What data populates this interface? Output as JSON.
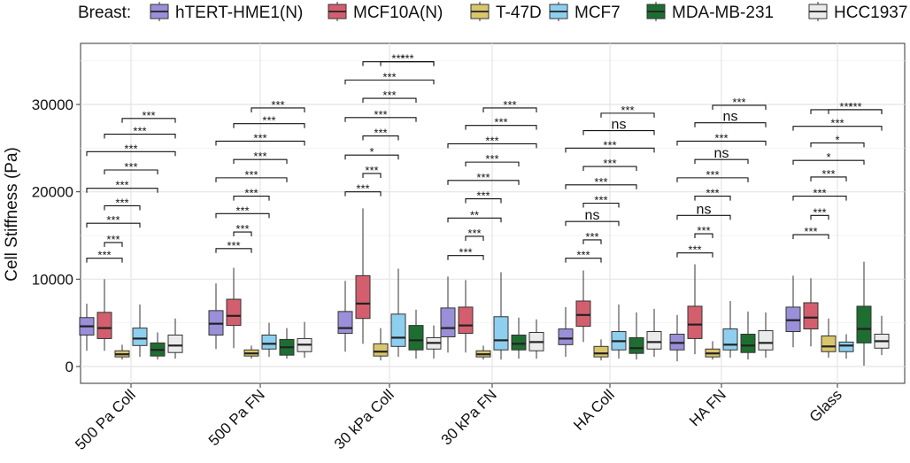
{
  "chart_data": {
    "type": "box",
    "ylabel": "Cell Stiffness (Pa)",
    "xlabel": "",
    "ylim": [
      -1500,
      37000
    ],
    "y_ticks": [
      0,
      10000,
      20000,
      30000
    ],
    "y_tick_labels": [
      "0",
      "10000",
      "20000",
      "30000"
    ],
    "grid": true,
    "legend": {
      "position": "top",
      "title": "Breast:"
    },
    "categories": [
      "500 Pa Coll",
      "500 Pa FN",
      "30 kPa Coll",
      "30 kPa FN",
      "HA Coll",
      "HA FN",
      "Glass"
    ],
    "series": [
      {
        "name": "hTERT-HME1(N)",
        "color": "#9a8fd9",
        "boxes": [
          {
            "min": 1800,
            "q1": 3600,
            "median": 4600,
            "q3": 5600,
            "max": 7200
          },
          {
            "min": 2000,
            "q1": 3600,
            "median": 4900,
            "q3": 6400,
            "max": 9500
          },
          {
            "min": 1700,
            "q1": 3800,
            "median": 4400,
            "q3": 6300,
            "max": 9800
          },
          {
            "min": 1600,
            "q1": 3400,
            "median": 4400,
            "q3": 6700,
            "max": 10300
          },
          {
            "min": 1100,
            "q1": 2500,
            "median": 3200,
            "q3": 4300,
            "max": 6800
          },
          {
            "min": 600,
            "q1": 1900,
            "median": 2700,
            "q3": 3700,
            "max": 5900
          },
          {
            "min": 2200,
            "q1": 4000,
            "median": 5300,
            "q3": 6800,
            "max": 10400
          }
        ]
      },
      {
        "name": "MCF10A(N)",
        "color": "#d35f6e",
        "boxes": [
          {
            "min": 1800,
            "q1": 3200,
            "median": 4400,
            "q3": 6200,
            "max": 10000
          },
          {
            "min": 2100,
            "q1": 4700,
            "median": 5800,
            "q3": 7700,
            "max": 11300
          },
          {
            "min": 2600,
            "q1": 5500,
            "median": 7200,
            "q3": 10400,
            "max": 18100
          },
          {
            "min": 1600,
            "q1": 3800,
            "median": 4700,
            "q3": 6800,
            "max": 9900
          },
          {
            "min": 2800,
            "q1": 4600,
            "median": 5900,
            "q3": 7500,
            "max": 11000
          },
          {
            "min": 1400,
            "q1": 3200,
            "median": 4800,
            "q3": 6900,
            "max": 11700
          },
          {
            "min": 2300,
            "q1": 4300,
            "median": 5600,
            "q3": 7300,
            "max": 10100
          }
        ]
      },
      {
        "name": "T-47D",
        "color": "#d9c56b",
        "boxes": [
          {
            "min": 800,
            "q1": 1100,
            "median": 1400,
            "q3": 1800,
            "max": 2500
          },
          {
            "min": 900,
            "q1": 1200,
            "median": 1500,
            "q3": 1900,
            "max": 2400
          },
          {
            "min": 700,
            "q1": 1200,
            "median": 1700,
            "q3": 2600,
            "max": 4400
          },
          {
            "min": 800,
            "q1": 1100,
            "median": 1400,
            "q3": 1800,
            "max": 2400
          },
          {
            "min": 700,
            "q1": 1100,
            "median": 1500,
            "q3": 2300,
            "max": 3100
          },
          {
            "min": 800,
            "q1": 1100,
            "median": 1500,
            "q3": 2000,
            "max": 2900
          },
          {
            "min": 1000,
            "q1": 1700,
            "median": 2300,
            "q3": 3500,
            "max": 5500
          }
        ]
      },
      {
        "name": "MCF7",
        "color": "#8ecfef",
        "boxes": [
          {
            "min": 1100,
            "q1": 2400,
            "median": 3200,
            "q3": 4400,
            "max": 7100
          },
          {
            "min": 1100,
            "q1": 2000,
            "median": 2600,
            "q3": 3600,
            "max": 5000
          },
          {
            "min": 1100,
            "q1": 2300,
            "median": 3300,
            "q3": 6000,
            "max": 11200
          },
          {
            "min": 800,
            "q1": 1900,
            "median": 3000,
            "q3": 5700,
            "max": 10800
          },
          {
            "min": 900,
            "q1": 1900,
            "median": 2900,
            "q3": 4000,
            "max": 7100
          },
          {
            "min": 1000,
            "q1": 1900,
            "median": 2500,
            "q3": 4300,
            "max": 7500
          },
          {
            "min": 900,
            "q1": 1700,
            "median": 2400,
            "q3": 2800,
            "max": 3700
          }
        ]
      },
      {
        "name": "MDA-MB-231",
        "color": "#1e6e32",
        "boxes": [
          {
            "min": 800,
            "q1": 1200,
            "median": 1900,
            "q3": 2700,
            "max": 3900
          },
          {
            "min": 900,
            "q1": 1300,
            "median": 2200,
            "q3": 3100,
            "max": 4400
          },
          {
            "min": 900,
            "q1": 1900,
            "median": 3000,
            "q3": 4700,
            "max": 6500
          },
          {
            "min": 900,
            "q1": 1900,
            "median": 2600,
            "q3": 3600,
            "max": 5600
          },
          {
            "min": 800,
            "q1": 1500,
            "median": 2100,
            "q3": 3300,
            "max": 6200
          },
          {
            "min": 800,
            "q1": 1600,
            "median": 2400,
            "q3": 3700,
            "max": 6300
          },
          {
            "min": 100,
            "q1": 2700,
            "median": 4300,
            "q3": 6900,
            "max": 12000
          }
        ]
      },
      {
        "name": "HCC1937",
        "color": "#ebebeb",
        "boxes": [
          {
            "min": 900,
            "q1": 1600,
            "median": 2400,
            "q3": 3600,
            "max": 5500
          },
          {
            "min": 1000,
            "q1": 1700,
            "median": 2500,
            "q3": 3200,
            "max": 5100
          },
          {
            "min": 900,
            "q1": 2000,
            "median": 2700,
            "q3": 3300,
            "max": 4700
          },
          {
            "min": 900,
            "q1": 1800,
            "median": 2800,
            "q3": 3900,
            "max": 5400
          },
          {
            "min": 1100,
            "q1": 2000,
            "median": 2800,
            "q3": 4000,
            "max": 6600
          },
          {
            "min": 1000,
            "q1": 1900,
            "median": 2700,
            "q3": 4100,
            "max": 6200
          },
          {
            "min": 1300,
            "q1": 2100,
            "median": 2900,
            "q3": 3700,
            "max": 5800
          }
        ]
      }
    ],
    "significance": [
      {
        "category": "500 Pa Coll",
        "comparisons": [
          {
            "from": 0,
            "to": 2,
            "y": 12400,
            "label": "***"
          },
          {
            "from": 1,
            "to": 2,
            "y": 14200,
            "label": "***"
          },
          {
            "from": 0,
            "to": 3,
            "y": 16400,
            "label": "***"
          },
          {
            "from": 1,
            "to": 3,
            "y": 18400,
            "label": "***"
          },
          {
            "from": 0,
            "to": 4,
            "y": 20400,
            "label": "***"
          },
          {
            "from": 1,
            "to": 4,
            "y": 22500,
            "label": "***"
          },
          {
            "from": 0,
            "to": 5,
            "y": 24600,
            "label": "***"
          },
          {
            "from": 1,
            "to": 5,
            "y": 26600,
            "label": "***"
          },
          {
            "from": 2,
            "to": 5,
            "y": 28400,
            "label": "***"
          }
        ]
      },
      {
        "category": "500 Pa FN",
        "comparisons": [
          {
            "from": 0,
            "to": 2,
            "y": 13500,
            "label": "***"
          },
          {
            "from": 1,
            "to": 2,
            "y": 15400,
            "label": "***"
          },
          {
            "from": 0,
            "to": 3,
            "y": 17500,
            "label": "***"
          },
          {
            "from": 1,
            "to": 3,
            "y": 19500,
            "label": "***"
          },
          {
            "from": 0,
            "to": 4,
            "y": 21600,
            "label": "***"
          },
          {
            "from": 1,
            "to": 4,
            "y": 23700,
            "label": "***"
          },
          {
            "from": 0,
            "to": 5,
            "y": 25800,
            "label": "***"
          },
          {
            "from": 1,
            "to": 5,
            "y": 27800,
            "label": "***"
          },
          {
            "from": 2,
            "to": 5,
            "y": 29600,
            "label": "***"
          }
        ]
      },
      {
        "category": "30 kPa Coll",
        "comparisons": [
          {
            "from": 0,
            "to": 2,
            "y": 20000,
            "label": "***"
          },
          {
            "from": 1,
            "to": 2,
            "y": 22100,
            "label": "***"
          },
          {
            "from": 0,
            "to": 3,
            "y": 24200,
            "label": "*"
          },
          {
            "from": 1,
            "to": 3,
            "y": 26400,
            "label": "***"
          },
          {
            "from": 0,
            "to": 4,
            "y": 28500,
            "label": "***"
          },
          {
            "from": 1,
            "to": 4,
            "y": 30700,
            "label": "***"
          },
          {
            "from": 0,
            "to": 5,
            "y": 32800,
            "label": "***"
          },
          {
            "from": 1,
            "to": 5,
            "y": 34900,
            "label": "***"
          },
          {
            "from": 2,
            "to": 5,
            "y": 34900,
            "label": "***"
          }
        ]
      },
      {
        "category": "30 kPa FN",
        "comparisons": [
          {
            "from": 0,
            "to": 2,
            "y": 12700,
            "label": "***"
          },
          {
            "from": 1,
            "to": 2,
            "y": 14900,
            "label": "***"
          },
          {
            "from": 0,
            "to": 3,
            "y": 17000,
            "label": "**"
          },
          {
            "from": 1,
            "to": 3,
            "y": 19200,
            "label": "***"
          },
          {
            "from": 0,
            "to": 4,
            "y": 21300,
            "label": "***"
          },
          {
            "from": 1,
            "to": 4,
            "y": 23400,
            "label": "***"
          },
          {
            "from": 0,
            "to": 5,
            "y": 25500,
            "label": "***"
          },
          {
            "from": 1,
            "to": 5,
            "y": 27600,
            "label": "***"
          },
          {
            "from": 2,
            "to": 5,
            "y": 29600,
            "label": "***"
          }
        ]
      },
      {
        "category": "HA Coll",
        "comparisons": [
          {
            "from": 0,
            "to": 2,
            "y": 12400,
            "label": "***"
          },
          {
            "from": 1,
            "to": 2,
            "y": 14500,
            "label": "***"
          },
          {
            "from": 0,
            "to": 3,
            "y": 16600,
            "label": "ns"
          },
          {
            "from": 1,
            "to": 3,
            "y": 18700,
            "label": "***"
          },
          {
            "from": 0,
            "to": 4,
            "y": 20800,
            "label": "***"
          },
          {
            "from": 1,
            "to": 4,
            "y": 22900,
            "label": "***"
          },
          {
            "from": 0,
            "to": 5,
            "y": 25000,
            "label": "***"
          },
          {
            "from": 1,
            "to": 5,
            "y": 27000,
            "label": "ns"
          },
          {
            "from": 2,
            "to": 5,
            "y": 29000,
            "label": "***"
          }
        ]
      },
      {
        "category": "HA FN",
        "comparisons": [
          {
            "from": 0,
            "to": 2,
            "y": 13000,
            "label": "***"
          },
          {
            "from": 1,
            "to": 2,
            "y": 15200,
            "label": "***"
          },
          {
            "from": 0,
            "to": 3,
            "y": 17300,
            "label": "ns"
          },
          {
            "from": 1,
            "to": 3,
            "y": 19500,
            "label": "***"
          },
          {
            "from": 0,
            "to": 4,
            "y": 21600,
            "label": "***"
          },
          {
            "from": 1,
            "to": 4,
            "y": 23700,
            "label": "ns"
          },
          {
            "from": 0,
            "to": 5,
            "y": 25800,
            "label": "***"
          },
          {
            "from": 1,
            "to": 5,
            "y": 27900,
            "label": "ns"
          },
          {
            "from": 2,
            "to": 5,
            "y": 29900,
            "label": "***"
          }
        ]
      },
      {
        "category": "Glass",
        "comparisons": [
          {
            "from": 0,
            "to": 2,
            "y": 15100,
            "label": "***"
          },
          {
            "from": 1,
            "to": 2,
            "y": 17300,
            "label": "***"
          },
          {
            "from": 0,
            "to": 3,
            "y": 19500,
            "label": "***"
          },
          {
            "from": 1,
            "to": 3,
            "y": 21700,
            "label": "***"
          },
          {
            "from": 0,
            "to": 4,
            "y": 23600,
            "label": "*"
          },
          {
            "from": 1,
            "to": 4,
            "y": 25600,
            "label": "*"
          },
          {
            "from": 0,
            "to": 5,
            "y": 27500,
            "label": "***"
          },
          {
            "from": 1,
            "to": 5,
            "y": 29400,
            "label": "***"
          },
          {
            "from": 2,
            "to": 5,
            "y": 29400,
            "label": "***"
          }
        ]
      }
    ]
  }
}
